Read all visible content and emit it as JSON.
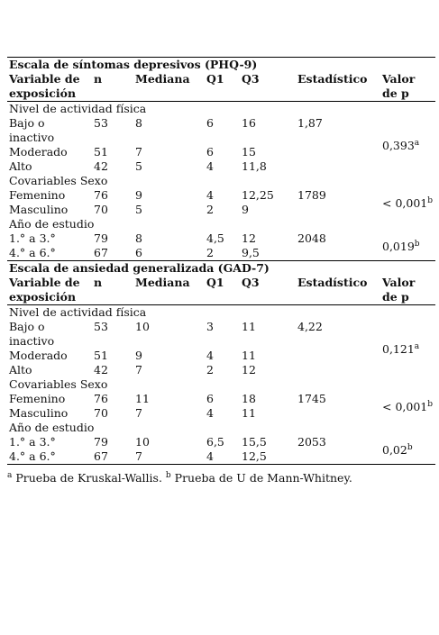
{
  "sections": [
    {
      "title": "Escala de síntomas depresivos (PHQ-9)",
      "columns": [
        "Variable de exposición",
        "n",
        "Mediana",
        "Q1",
        "Q3",
        "Estadístico",
        "Valor de p"
      ],
      "rows": [
        {
          "group": "Nivel de actividad física"
        },
        {
          "cells": [
            "Bajo o inactivo",
            "53",
            "8",
            "6",
            "16"
          ],
          "stat": "1,87",
          "p": {
            "text": "0,393",
            "sup": "a"
          }
        },
        {
          "cells": [
            "Moderado",
            "51",
            "7",
            "6",
            "15"
          ]
        },
        {
          "cells": [
            "Alto",
            "42",
            "5",
            "4",
            "11,8"
          ]
        },
        {
          "group": "Covariables Sexo"
        },
        {
          "cells": [
            "Femenino",
            "76",
            "9",
            "4",
            "12,25"
          ],
          "stat": "1789",
          "p": {
            "text": "< 0,001",
            "sup": "b"
          }
        },
        {
          "cells": [
            "Masculino",
            "70",
            "5",
            "2",
            "9"
          ]
        },
        {
          "group": "Año de estudio"
        },
        {
          "cells": [
            "1.° a 3.°",
            "79",
            "8",
            "4,5",
            "12"
          ],
          "stat": "2048",
          "p": {
            "text": "0,019",
            "sup": "b"
          }
        },
        {
          "cells": [
            "4.° a 6.°",
            "67",
            "6",
            "2",
            "9,5"
          ]
        }
      ]
    },
    {
      "title": "Escala de ansiedad generalizada (GAD-7)",
      "columns": [
        "Variable de exposición",
        "n",
        "Mediana",
        "Q1",
        "Q3",
        "Estadístico",
        "Valor de p"
      ],
      "rows": [
        {
          "group": "Nivel de actividad física"
        },
        {
          "cells": [
            "Bajo o inactivo",
            "53",
            "10",
            "3",
            "11"
          ],
          "stat": "4,22",
          "p": {
            "text": "0,121",
            "sup": "a"
          }
        },
        {
          "cells": [
            "Moderado",
            "51",
            "9",
            "4",
            "11"
          ]
        },
        {
          "cells": [
            "Alto",
            "42",
            "7",
            "2",
            "12"
          ]
        },
        {
          "group": "Covariables Sexo"
        },
        {
          "cells": [
            "Femenino",
            "76",
            "11",
            "6",
            "18"
          ],
          "stat": "1745",
          "p": {
            "text": "< 0,001",
            "sup": "b"
          }
        },
        {
          "cells": [
            "Masculino",
            "70",
            "7",
            "4",
            "11"
          ]
        },
        {
          "group": "Año de estudio"
        },
        {
          "cells": [
            "1.° a 3.°",
            "79",
            "10",
            "6,5",
            "15,5"
          ],
          "stat": "2053",
          "p": {
            "text": "0,02",
            "sup": "b"
          }
        },
        {
          "cells": [
            "4.° a 6.°",
            "67",
            "7",
            "4",
            "12,5"
          ]
        }
      ]
    }
  ],
  "footnote": [
    {
      "sup": "a",
      "text": "Prueba de Kruskal-Wallis."
    },
    {
      "sup": "b",
      "text": "Prueba de U de Mann-Whitney."
    }
  ]
}
